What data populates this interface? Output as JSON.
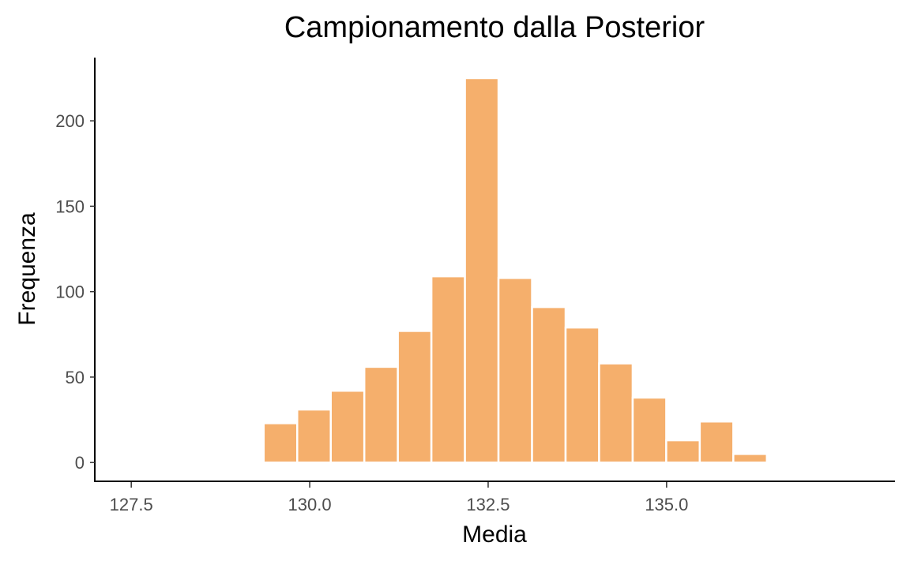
{
  "chart_data": {
    "type": "bar",
    "title": "Campionamento dalla Posterior",
    "xlabel": "Media",
    "ylabel": "Frequenza",
    "x_ticks": [
      127.5,
      130.0,
      132.5,
      135.0
    ],
    "x_tick_labels": [
      "127.5",
      "130.0",
      "132.5",
      "135.0"
    ],
    "y_ticks": [
      0,
      50,
      100,
      150,
      200
    ],
    "y_tick_labels": [
      "0",
      "50",
      "100",
      "150",
      "200"
    ],
    "xlim": [
      127.0,
      138.2
    ],
    "ylim": [
      -11,
      237
    ],
    "bin_width": 0.47,
    "bins": [
      {
        "x": 128.65,
        "count": 1
      },
      {
        "x": 129.12,
        "count": 1
      },
      {
        "x": 129.59,
        "count": 23
      },
      {
        "x": 130.06,
        "count": 31
      },
      {
        "x": 130.53,
        "count": 42
      },
      {
        "x": 131.0,
        "count": 56
      },
      {
        "x": 131.47,
        "count": 77
      },
      {
        "x": 131.94,
        "count": 109
      },
      {
        "x": 132.41,
        "count": 225
      },
      {
        "x": 132.88,
        "count": 108
      },
      {
        "x": 133.35,
        "count": 91
      },
      {
        "x": 133.82,
        "count": 79
      },
      {
        "x": 134.29,
        "count": 58
      },
      {
        "x": 134.76,
        "count": 38
      },
      {
        "x": 135.23,
        "count": 13
      },
      {
        "x": 135.7,
        "count": 24
      },
      {
        "x": 136.17,
        "count": 5
      }
    ],
    "bar_fill": "#F5AF6C",
    "bar_stroke": "#FFFFFF",
    "grid": false,
    "legend": "none"
  }
}
